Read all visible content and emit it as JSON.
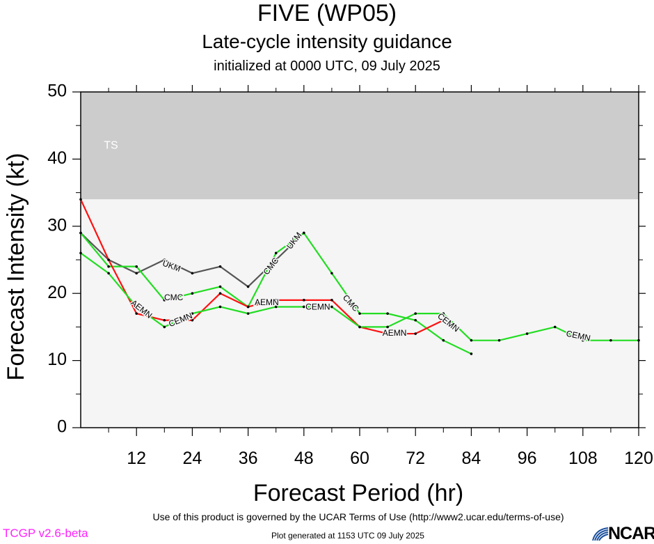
{
  "titles": {
    "main": "FIVE (WP05)",
    "sub": "Late-cycle intensity guidance",
    "init": "initialized at 0000 UTC, 09 July 2025"
  },
  "footer": {
    "terms": "Use of this product is governed by the UCAR Terms of Use (http://www2.ucar.edu/terms-of-use)",
    "version": "TCGP v2.6-beta",
    "generated": "Plot generated at 1153 UTC   09 July 2025",
    "logo": "NCAR"
  },
  "chart_data": {
    "type": "line",
    "title": "FIVE (WP05)",
    "xlabel": "Forecast Period (hr)",
    "ylabel": "Forecast Intensity (kt)",
    "xlim": [
      0,
      120
    ],
    "ylim": [
      0,
      50
    ],
    "xticks": [
      12,
      24,
      36,
      48,
      60,
      72,
      84,
      96,
      108,
      120
    ],
    "yticks": [
      0,
      10,
      20,
      30,
      40,
      50
    ],
    "bands": [
      {
        "label": "TS",
        "from": 34,
        "to": 50,
        "color": "#cccccc"
      },
      {
        "label": "",
        "from": 0,
        "to": 34,
        "color": "#f5f5f5"
      }
    ],
    "series": [
      {
        "name": "UKM",
        "color": "#555555",
        "x": [
          0,
          6,
          12,
          18,
          24,
          30,
          36,
          42,
          48
        ],
        "y": [
          29,
          25,
          23,
          25,
          23,
          24,
          21,
          25,
          29
        ]
      },
      {
        "name": "CMC",
        "color": "#22dd22",
        "x": [
          0,
          6,
          12,
          18,
          24,
          30,
          36,
          42,
          48,
          54,
          60,
          66,
          72,
          78,
          84
        ],
        "y": [
          29,
          24,
          24,
          19,
          20,
          21,
          18,
          26,
          29,
          23,
          17,
          17,
          16,
          13,
          11
        ]
      },
      {
        "name": "AEMN",
        "color": "#ff1111",
        "x": [
          0,
          6,
          12,
          18,
          24,
          30,
          36,
          42,
          48,
          54,
          60,
          66,
          72,
          78
        ],
        "y": [
          34,
          25,
          17,
          16,
          16,
          20,
          18,
          19,
          19,
          19,
          15,
          14,
          14,
          16
        ]
      },
      {
        "name": "CEMN",
        "color": "#22dd22",
        "x": [
          0,
          6,
          12,
          18,
          24,
          30,
          36,
          42,
          48,
          54,
          60,
          66,
          72,
          78,
          84,
          90,
          96,
          102,
          108,
          114,
          120
        ],
        "y": [
          26,
          23,
          18,
          15,
          17,
          18,
          17,
          18,
          18,
          18,
          15,
          15,
          17,
          17,
          13,
          13,
          14,
          15,
          13,
          13,
          13
        ]
      }
    ],
    "annotations": [
      {
        "text": "UKM",
        "x": 19.5,
        "y": 24,
        "angle": 20
      },
      {
        "text": "UKM",
        "x": 46,
        "y": 27.8,
        "angle": -52
      },
      {
        "text": "CMC",
        "x": 20,
        "y": 19.3,
        "angle": 0
      },
      {
        "text": "CMC",
        "x": 41,
        "y": 24,
        "angle": -52
      },
      {
        "text": "CMC",
        "x": 58,
        "y": 18.5,
        "angle": 48
      },
      {
        "text": "AEMN",
        "x": 13,
        "y": 17.6,
        "angle": 38
      },
      {
        "text": "AEMN",
        "x": 40,
        "y": 18.6,
        "angle": 0
      },
      {
        "text": "AEMN",
        "x": 67.5,
        "y": 14,
        "angle": 0
      },
      {
        "text": "CEMN",
        "x": 21.5,
        "y": 16,
        "angle": -22
      },
      {
        "text": "CEMN",
        "x": 51,
        "y": 17.9,
        "angle": 0
      },
      {
        "text": "CEMN",
        "x": 79,
        "y": 15.6,
        "angle": 38
      },
      {
        "text": "CEMN",
        "x": 107,
        "y": 13.6,
        "angle": 12
      }
    ]
  }
}
